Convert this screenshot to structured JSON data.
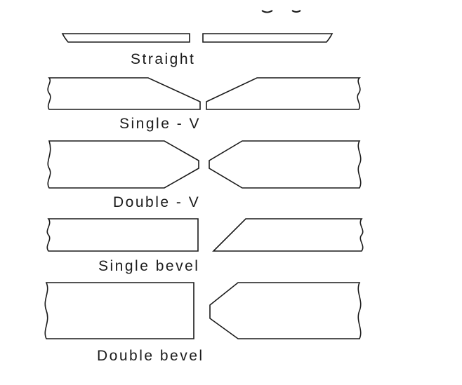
{
  "joints": [
    {
      "id": "straight",
      "label": "Straight"
    },
    {
      "id": "single-v",
      "label": "Single - V"
    },
    {
      "id": "double-v",
      "label": "Double - V"
    },
    {
      "id": "single-bevel",
      "label": "Single bevel"
    },
    {
      "id": "double-bevel",
      "label": "Double bevel"
    }
  ],
  "colors": {
    "line": "#1a1a1a",
    "background": "#ffffff"
  }
}
